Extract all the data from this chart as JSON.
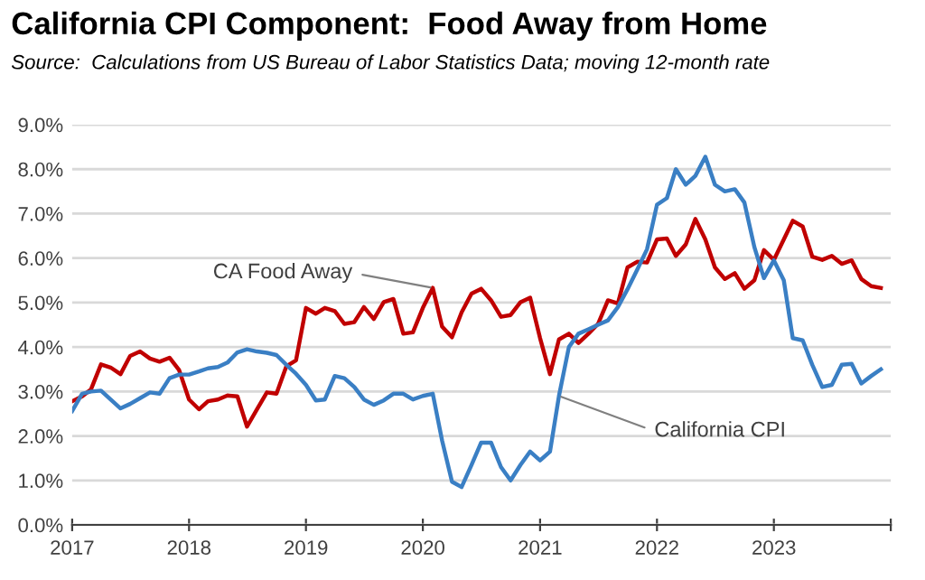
{
  "chart_data": {
    "type": "line",
    "title": "California CPI Component:  Food Away from Home",
    "subtitle": "Source:  Calculations from US Bureau of Labor Statistics Data; moving 12-month rate",
    "x": [
      "2017-01",
      "2017-02",
      "2017-03",
      "2017-04",
      "2017-05",
      "2017-06",
      "2017-07",
      "2017-08",
      "2017-09",
      "2017-10",
      "2017-11",
      "2017-12",
      "2018-01",
      "2018-02",
      "2018-03",
      "2018-04",
      "2018-05",
      "2018-06",
      "2018-07",
      "2018-08",
      "2018-09",
      "2018-10",
      "2018-11",
      "2018-12",
      "2019-01",
      "2019-02",
      "2019-03",
      "2019-04",
      "2019-05",
      "2019-06",
      "2019-07",
      "2019-08",
      "2019-09",
      "2019-10",
      "2019-11",
      "2019-12",
      "2020-01",
      "2020-02",
      "2020-03",
      "2020-04",
      "2020-05",
      "2020-06",
      "2020-07",
      "2020-08",
      "2020-09",
      "2020-10",
      "2020-11",
      "2020-12",
      "2021-01",
      "2021-02",
      "2021-03",
      "2021-04",
      "2021-05",
      "2021-06",
      "2021-07",
      "2021-08",
      "2021-09",
      "2021-10",
      "2021-11",
      "2021-12",
      "2022-01",
      "2022-02",
      "2022-03",
      "2022-04",
      "2022-05",
      "2022-06",
      "2022-07",
      "2022-08",
      "2022-09",
      "2022-10",
      "2022-11",
      "2022-12",
      "2023-01",
      "2023-02",
      "2023-03",
      "2023-04",
      "2023-05",
      "2023-06",
      "2023-07",
      "2023-08",
      "2023-09",
      "2023-10",
      "2023-11",
      "2023-12"
    ],
    "series": [
      {
        "color": "#c00000",
        "values": [
          2.78,
          2.89,
          3.05,
          3.61,
          3.54,
          3.39,
          3.8,
          3.9,
          3.74,
          3.67,
          3.76,
          3.48,
          2.82,
          2.6,
          2.78,
          2.82,
          2.91,
          2.89,
          2.21,
          2.6,
          2.98,
          2.95,
          3.57,
          3.7,
          4.88,
          4.75,
          4.88,
          4.81,
          4.52,
          4.56,
          4.9,
          4.63,
          5.01,
          5.08,
          4.3,
          4.33,
          4.88,
          5.33,
          4.46,
          4.22,
          4.78,
          5.2,
          5.31,
          5.05,
          4.68,
          4.72,
          5.01,
          5.11,
          4.2,
          3.39,
          4.17,
          4.3,
          4.09,
          4.3,
          4.52,
          5.05,
          4.98,
          5.79,
          5.92,
          5.9,
          6.42,
          6.44,
          6.05,
          6.31,
          6.88,
          6.42,
          5.79,
          5.53,
          5.66,
          5.31,
          5.5,
          6.18,
          5.96,
          6.42,
          6.84,
          6.71,
          6.03,
          5.96,
          6.05,
          5.87,
          5.95,
          5.53,
          5.37,
          5.33
        ]
      },
      {
        "color": "#3a7fc4",
        "values": [
          2.56,
          2.95,
          3.0,
          3.02,
          2.82,
          2.62,
          2.72,
          2.85,
          2.98,
          2.95,
          3.3,
          3.38,
          3.38,
          3.45,
          3.52,
          3.55,
          3.65,
          3.88,
          3.95,
          3.9,
          3.87,
          3.82,
          3.6,
          3.4,
          3.15,
          2.8,
          2.82,
          3.35,
          3.3,
          3.1,
          2.82,
          2.7,
          2.8,
          2.95,
          2.95,
          2.82,
          2.9,
          2.95,
          1.9,
          0.97,
          0.85,
          1.35,
          1.85,
          1.85,
          1.3,
          1.0,
          1.35,
          1.65,
          1.45,
          1.65,
          2.9,
          4.0,
          4.3,
          4.4,
          4.5,
          4.6,
          4.9,
          5.3,
          5.75,
          6.2,
          7.2,
          7.35,
          8.0,
          7.65,
          7.85,
          8.28,
          7.65,
          7.5,
          7.55,
          7.25,
          6.25,
          5.55,
          5.95,
          5.5,
          4.2,
          4.15,
          3.6,
          3.1,
          3.15,
          3.6,
          3.62,
          3.18,
          3.35,
          3.5
        ]
      }
    ],
    "annotations": [
      {
        "text": "CA Food Away",
        "x": "2020-02",
        "y": 5.33
      },
      {
        "text": "California CPI",
        "x": "2021-03",
        "y": 2.9
      }
    ],
    "xlim": [
      "2017",
      "2024"
    ],
    "xticks": [
      "2017",
      "2018",
      "2019",
      "2020",
      "2021",
      "2022",
      "2023",
      {
        "value": "2024",
        "label": null
      }
    ],
    "ylim": [
      0,
      9
    ],
    "yticks": [
      {
        "value": 0,
        "label": "0.0%"
      },
      {
        "value": 1,
        "label": "1.0%"
      },
      {
        "value": 2,
        "label": "2.0%"
      },
      {
        "value": 3,
        "label": "3.0%"
      },
      {
        "value": 4,
        "label": "4.0%"
      },
      {
        "value": 5,
        "label": "5.0%"
      },
      {
        "value": 6,
        "label": "6.0%"
      },
      {
        "value": 7,
        "label": "7.0%"
      },
      {
        "value": 8,
        "label": "8.0%"
      },
      {
        "value": 9,
        "label": "9.0%"
      }
    ],
    "grid": "y",
    "legend": false
  }
}
